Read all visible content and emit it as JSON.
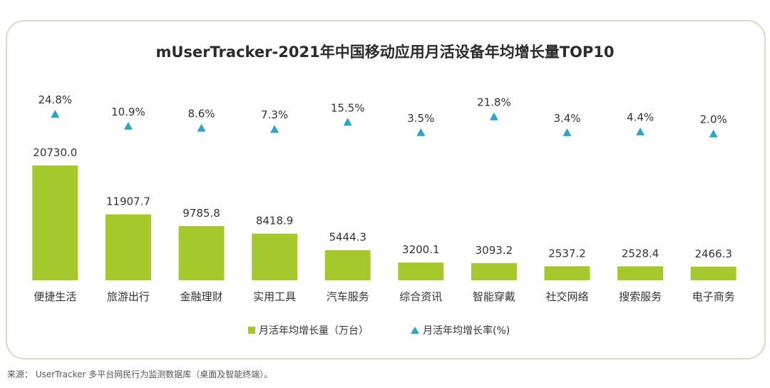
{
  "chart_data": {
    "type": "bar",
    "title": "mUserTracker-2021年中国移动应用月活设备年均增长量TOP10",
    "categories": [
      "便捷生活",
      "旅游出行",
      "金融理财",
      "实用工具",
      "汽车服务",
      "综合资讯",
      "智能穿戴",
      "社交网络",
      "搜索服务",
      "电子商务"
    ],
    "series": [
      {
        "name": "月活年均增长量（万台）",
        "type": "bar",
        "values": [
          20730.0,
          11907.7,
          9785.8,
          8418.9,
          5444.3,
          3200.1,
          3093.2,
          2537.2,
          2528.4,
          2466.3
        ],
        "labels": [
          "20730.0",
          "11907.7",
          "9785.8",
          "8418.9",
          "5444.3",
          "3200.1",
          "3093.2",
          "2537.2",
          "2528.4",
          "2466.3"
        ]
      },
      {
        "name": "月活年均增长率(%)",
        "type": "scatter",
        "marker": "triangle",
        "values": [
          24.8,
          10.9,
          8.6,
          7.3,
          15.5,
          3.5,
          21.8,
          3.4,
          4.4,
          2.0
        ],
        "labels": [
          "24.8%",
          "10.9%",
          "8.6%",
          "7.3%",
          "15.5%",
          "3.5%",
          "21.8%",
          "3.4%",
          "4.4%",
          "2.0%"
        ]
      }
    ],
    "ylim_bar": [
      0,
      20730
    ],
    "ylim_rate": [
      0,
      24.8
    ],
    "grid": false,
    "legend_position": "bottom-center",
    "colors": {
      "bar": "#a5c82c",
      "marker": "#2ba4c9",
      "text": "#333333",
      "title": "#2b2b2b"
    }
  },
  "source": "来源： UserTracker 多平台网民行为监测数据库（桌面及智能终端）。"
}
